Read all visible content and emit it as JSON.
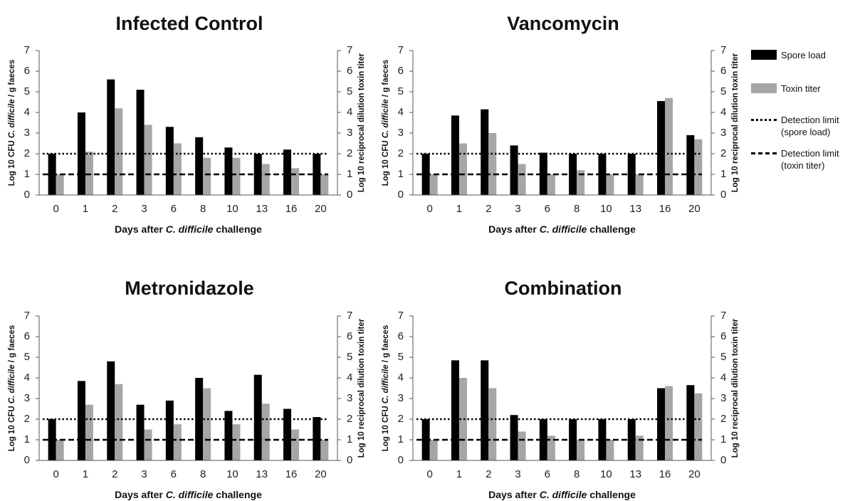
{
  "colors": {
    "spore": "#000000",
    "toxin": "#a6a6a6",
    "detection_line": "#000000"
  },
  "legend": {
    "items": [
      {
        "key": "spore",
        "label": "Spore load",
        "style": "bar-black"
      },
      {
        "key": "toxin",
        "label": "Toxin titer",
        "style": "bar-grey"
      },
      {
        "key": "dl_spore",
        "label_line1": "Detection limit",
        "label_line2": "(spore load)",
        "style": "dotted-line"
      },
      {
        "key": "dl_toxin",
        "label_line1": "Detection limit",
        "label_line2": "(toxin titer)",
        "style": "dashed-line"
      }
    ]
  },
  "chart_data": [
    {
      "type": "bar",
      "title": "Infected Control",
      "categories": [
        "0",
        "1",
        "2",
        "3",
        "6",
        "8",
        "10",
        "13",
        "16",
        "20"
      ],
      "series": [
        {
          "name": "Spore load",
          "axis": "left",
          "values": [
            2.0,
            4.0,
            5.6,
            5.1,
            3.3,
            2.8,
            2.3,
            2.0,
            2.2,
            2.0
          ]
        },
        {
          "name": "Toxin titer",
          "axis": "right",
          "values": [
            1.0,
            2.1,
            4.2,
            3.4,
            2.5,
            1.8,
            1.8,
            1.5,
            1.3,
            1.0
          ]
        }
      ],
      "reference_lines": [
        {
          "name": "Detection limit (spore load)",
          "value": 2,
          "style": "dotted"
        },
        {
          "name": "Detection limit (toxin titer)",
          "value": 1,
          "style": "dashed"
        }
      ],
      "xlabel_pre": "Days after ",
      "xlabel_ital": "C. difficile",
      "xlabel_post": " challenge",
      "ylabel_pre": "Log 10 CFU ",
      "ylabel_ital": "C. difficile",
      "ylabel_post": " / g faeces",
      "y2label": "Log 10 reciprocal dilution toxin titer",
      "ylim": [
        0,
        7
      ],
      "yticks": [
        "0",
        "1",
        "2",
        "3",
        "4",
        "5",
        "6",
        "7"
      ],
      "grid": false
    },
    {
      "type": "bar",
      "title": "Vancomycin",
      "categories": [
        "0",
        "1",
        "2",
        "3",
        "6",
        "8",
        "10",
        "13",
        "16",
        "20"
      ],
      "series": [
        {
          "name": "Spore load",
          "axis": "left",
          "values": [
            2.0,
            3.85,
            4.15,
            2.4,
            2.05,
            2.0,
            2.0,
            2.0,
            4.55,
            2.9
          ]
        },
        {
          "name": "Toxin titer",
          "axis": "right",
          "values": [
            1.0,
            2.5,
            3.0,
            1.5,
            1.0,
            1.2,
            1.0,
            1.0,
            4.7,
            2.7
          ]
        }
      ],
      "reference_lines": [
        {
          "name": "Detection limit (spore load)",
          "value": 2,
          "style": "dotted"
        },
        {
          "name": "Detection limit (toxin titer)",
          "value": 1,
          "style": "dashed"
        }
      ],
      "xlabel_pre": "Days after ",
      "xlabel_ital": "C. difficile",
      "xlabel_post": " challenge",
      "ylabel_pre": "Log 10 CFU ",
      "ylabel_ital": "C. difficile",
      "ylabel_post": " / g faeces",
      "y2label": "Log 10 reciprocal dilution toxin titer",
      "ylim": [
        0,
        7
      ],
      "yticks": [
        "0",
        "1",
        "2",
        "3",
        "4",
        "5",
        "6",
        "7"
      ],
      "grid": false
    },
    {
      "type": "bar",
      "title": "Metronidazole",
      "categories": [
        "0",
        "1",
        "2",
        "3",
        "6",
        "8",
        "10",
        "13",
        "16",
        "20"
      ],
      "series": [
        {
          "name": "Spore load",
          "axis": "left",
          "values": [
            2.0,
            3.85,
            4.8,
            2.7,
            2.9,
            4.0,
            2.4,
            4.15,
            2.5,
            2.1
          ]
        },
        {
          "name": "Toxin titer",
          "axis": "right",
          "values": [
            1.0,
            2.7,
            3.7,
            1.5,
            1.75,
            3.5,
            1.75,
            2.75,
            1.5,
            1.0
          ]
        }
      ],
      "reference_lines": [
        {
          "name": "Detection limit (spore load)",
          "value": 2,
          "style": "dotted"
        },
        {
          "name": "Detection limit (toxin titer)",
          "value": 1,
          "style": "dashed"
        }
      ],
      "xlabel_pre": "Days after ",
      "xlabel_ital": "C. difficile",
      "xlabel_post": " challenge",
      "ylabel_pre": "Log 10 CFU ",
      "ylabel_ital": "C. difficile",
      "ylabel_post": " / g faeces",
      "y2label": "Log 10 reciprocal dilution toxin titer",
      "ylim": [
        0,
        7
      ],
      "yticks": [
        "0",
        "1",
        "2",
        "3",
        "4",
        "5",
        "6",
        "7"
      ],
      "grid": false
    },
    {
      "type": "bar",
      "title": "Combination",
      "categories": [
        "0",
        "1",
        "2",
        "3",
        "6",
        "8",
        "10",
        "13",
        "16",
        "20"
      ],
      "series": [
        {
          "name": "Spore load",
          "axis": "left",
          "values": [
            2.0,
            4.85,
            4.85,
            2.2,
            2.0,
            2.0,
            2.0,
            2.0,
            3.5,
            3.65
          ]
        },
        {
          "name": "Toxin titer",
          "axis": "right",
          "values": [
            1.0,
            4.0,
            3.5,
            1.4,
            1.2,
            1.0,
            1.0,
            1.2,
            3.6,
            3.25
          ]
        }
      ],
      "reference_lines": [
        {
          "name": "Detection limit (spore load)",
          "value": 2,
          "style": "dotted"
        },
        {
          "name": "Detection limit (toxin titer)",
          "value": 1,
          "style": "dashed"
        }
      ],
      "xlabel_pre": "Days after ",
      "xlabel_ital": "C. difficile",
      "xlabel_post": " challenge",
      "ylabel_pre": "Log 10 CFU ",
      "ylabel_ital": "C. difficile",
      "ylabel_post": " / g faeces",
      "y2label": "Log 10 reciprocal dilution toxin titer",
      "ylim": [
        0,
        7
      ],
      "yticks": [
        "0",
        "1",
        "2",
        "3",
        "4",
        "5",
        "6",
        "7"
      ],
      "grid": false
    }
  ]
}
